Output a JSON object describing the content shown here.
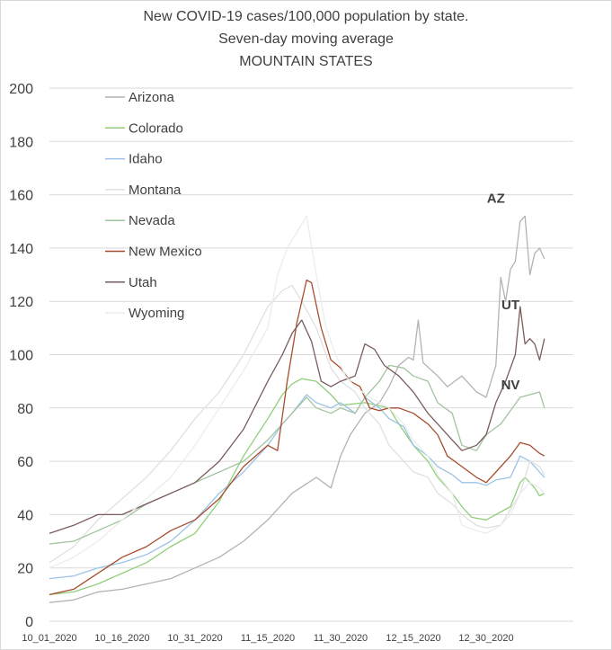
{
  "chart_data": {
    "type": "line",
    "title_lines": [
      "New COVID-19 cases/100,000 population by state.",
      "Seven-day moving average",
      "MOUNTAIN STATES"
    ],
    "ylim": [
      0,
      200
    ],
    "yticks": [
      0,
      20,
      40,
      60,
      80,
      100,
      120,
      140,
      160,
      180,
      200
    ],
    "x_tick_labels": [
      {
        "day": 0,
        "label": "10_01_2020"
      },
      {
        "day": 15,
        "label": "10_16_2020"
      },
      {
        "day": 30,
        "label": "10_31_2020"
      },
      {
        "day": 45,
        "label": "11_15_2020"
      },
      {
        "day": 60,
        "label": "11_30_2020"
      },
      {
        "day": 75,
        "label": "12_15_2020"
      },
      {
        "day": 90,
        "label": "12_30_2020"
      }
    ],
    "grid": "horizontal",
    "legend_position": "top-left",
    "annotations": [
      {
        "text": "AZ",
        "day": 92,
        "value": 157
      },
      {
        "text": "UT",
        "day": 95,
        "value": 117
      },
      {
        "text": "NV",
        "day": 95,
        "value": 87
      }
    ],
    "series": [
      {
        "name": "Arizona",
        "color": "#b3b3b3",
        "points": [
          [
            0,
            7
          ],
          [
            5,
            8
          ],
          [
            10,
            11
          ],
          [
            15,
            12
          ],
          [
            20,
            14
          ],
          [
            25,
            16
          ],
          [
            30,
            20
          ],
          [
            35,
            24
          ],
          [
            40,
            30
          ],
          [
            45,
            38
          ],
          [
            50,
            48
          ],
          [
            55,
            54
          ],
          [
            58,
            50
          ],
          [
            60,
            62
          ],
          [
            62,
            70
          ],
          [
            65,
            78
          ],
          [
            68,
            82
          ],
          [
            70,
            88
          ],
          [
            72,
            96
          ],
          [
            74,
            99
          ],
          [
            75,
            98
          ],
          [
            76,
            113
          ],
          [
            77,
            97
          ],
          [
            80,
            92
          ],
          [
            82,
            88
          ],
          [
            85,
            92
          ],
          [
            88,
            86
          ],
          [
            90,
            84
          ],
          [
            91,
            90
          ],
          [
            92,
            96
          ],
          [
            93,
            129
          ],
          [
            94,
            120
          ],
          [
            95,
            132
          ],
          [
            96,
            135
          ],
          [
            97,
            150
          ],
          [
            98,
            152
          ],
          [
            99,
            130
          ],
          [
            100,
            138
          ],
          [
            101,
            140
          ],
          [
            102,
            136
          ]
        ]
      },
      {
        "name": "Colorado",
        "color": "#8fcf7a",
        "points": [
          [
            0,
            10
          ],
          [
            5,
            11
          ],
          [
            10,
            14
          ],
          [
            15,
            18
          ],
          [
            20,
            22
          ],
          [
            25,
            28
          ],
          [
            30,
            33
          ],
          [
            35,
            45
          ],
          [
            40,
            62
          ],
          [
            45,
            76
          ],
          [
            48,
            85
          ],
          [
            50,
            89
          ],
          [
            52,
            91
          ],
          [
            55,
            90
          ],
          [
            58,
            85
          ],
          [
            60,
            81
          ],
          [
            65,
            82
          ],
          [
            70,
            80
          ],
          [
            72,
            74
          ],
          [
            75,
            66
          ],
          [
            78,
            60
          ],
          [
            80,
            54
          ],
          [
            83,
            48
          ],
          [
            85,
            43
          ],
          [
            87,
            39
          ],
          [
            90,
            38
          ],
          [
            92,
            40
          ],
          [
            95,
            43
          ],
          [
            97,
            52
          ],
          [
            98,
            54
          ],
          [
            100,
            50
          ],
          [
            101,
            47
          ],
          [
            102,
            48
          ]
        ]
      },
      {
        "name": "Idaho",
        "color": "#9cc3e6",
        "points": [
          [
            0,
            16
          ],
          [
            5,
            17
          ],
          [
            10,
            20
          ],
          [
            15,
            22
          ],
          [
            20,
            25
          ],
          [
            25,
            30
          ],
          [
            30,
            38
          ],
          [
            35,
            48
          ],
          [
            40,
            56
          ],
          [
            45,
            66
          ],
          [
            48,
            74
          ],
          [
            50,
            78
          ],
          [
            53,
            85
          ],
          [
            55,
            82
          ],
          [
            58,
            80
          ],
          [
            60,
            82
          ],
          [
            63,
            78
          ],
          [
            65,
            84
          ],
          [
            68,
            80
          ],
          [
            70,
            76
          ],
          [
            73,
            73
          ],
          [
            75,
            66
          ],
          [
            78,
            62
          ],
          [
            80,
            58
          ],
          [
            83,
            55
          ],
          [
            85,
            52
          ],
          [
            88,
            52
          ],
          [
            90,
            51
          ],
          [
            92,
            53
          ],
          [
            95,
            54
          ],
          [
            97,
            62
          ],
          [
            99,
            60
          ],
          [
            101,
            56
          ],
          [
            102,
            54
          ]
        ]
      },
      {
        "name": "Montana",
        "color": "#e0e0e0",
        "points": [
          [
            0,
            22
          ],
          [
            5,
            28
          ],
          [
            10,
            38
          ],
          [
            15,
            46
          ],
          [
            20,
            54
          ],
          [
            25,
            64
          ],
          [
            30,
            76
          ],
          [
            35,
            86
          ],
          [
            40,
            100
          ],
          [
            45,
            118
          ],
          [
            48,
            124
          ],
          [
            50,
            126
          ],
          [
            52,
            120
          ],
          [
            55,
            110
          ],
          [
            58,
            95
          ],
          [
            60,
            90
          ],
          [
            63,
            86
          ],
          [
            65,
            80
          ],
          [
            68,
            74
          ],
          [
            70,
            66
          ],
          [
            73,
            60
          ],
          [
            75,
            56
          ],
          [
            78,
            54
          ],
          [
            80,
            48
          ],
          [
            83,
            44
          ],
          [
            85,
            40
          ],
          [
            88,
            36
          ],
          [
            90,
            35
          ],
          [
            93,
            36
          ],
          [
            95,
            42
          ],
          [
            97,
            48
          ],
          [
            99,
            60
          ],
          [
            101,
            58
          ],
          [
            102,
            55
          ]
        ]
      },
      {
        "name": "Nevada",
        "color": "#a3c3a0",
        "points": [
          [
            0,
            29
          ],
          [
            5,
            30
          ],
          [
            10,
            34
          ],
          [
            15,
            38
          ],
          [
            20,
            44
          ],
          [
            25,
            48
          ],
          [
            30,
            52
          ],
          [
            35,
            56
          ],
          [
            40,
            60
          ],
          [
            45,
            68
          ],
          [
            48,
            74
          ],
          [
            50,
            78
          ],
          [
            53,
            84
          ],
          [
            55,
            80
          ],
          [
            58,
            78
          ],
          [
            60,
            80
          ],
          [
            63,
            78
          ],
          [
            65,
            84
          ],
          [
            68,
            90
          ],
          [
            70,
            96
          ],
          [
            73,
            95
          ],
          [
            75,
            92
          ],
          [
            78,
            90
          ],
          [
            80,
            82
          ],
          [
            83,
            78
          ],
          [
            85,
            66
          ],
          [
            88,
            64
          ],
          [
            90,
            70
          ],
          [
            93,
            74
          ],
          [
            95,
            79
          ],
          [
            97,
            84
          ],
          [
            99,
            85
          ],
          [
            101,
            86
          ],
          [
            102,
            80
          ]
        ]
      },
      {
        "name": "New Mexico",
        "color": "#a64d2e",
        "points": [
          [
            0,
            10
          ],
          [
            5,
            12
          ],
          [
            10,
            18
          ],
          [
            15,
            24
          ],
          [
            20,
            28
          ],
          [
            25,
            34
          ],
          [
            30,
            38
          ],
          [
            35,
            46
          ],
          [
            40,
            58
          ],
          [
            45,
            66
          ],
          [
            47,
            64
          ],
          [
            49,
            90
          ],
          [
            51,
            112
          ],
          [
            53,
            128
          ],
          [
            54,
            127
          ],
          [
            56,
            110
          ],
          [
            58,
            98
          ],
          [
            60,
            95
          ],
          [
            62,
            90
          ],
          [
            64,
            88
          ],
          [
            66,
            80
          ],
          [
            68,
            79
          ],
          [
            70,
            80
          ],
          [
            72,
            80
          ],
          [
            75,
            78
          ],
          [
            78,
            74
          ],
          [
            80,
            70
          ],
          [
            82,
            62
          ],
          [
            85,
            58
          ],
          [
            88,
            54
          ],
          [
            90,
            52
          ],
          [
            92,
            56
          ],
          [
            95,
            62
          ],
          [
            97,
            67
          ],
          [
            99,
            66
          ],
          [
            101,
            63
          ],
          [
            102,
            62
          ]
        ]
      },
      {
        "name": "Utah",
        "color": "#7a5c5c",
        "points": [
          [
            0,
            33
          ],
          [
            5,
            36
          ],
          [
            10,
            40
          ],
          [
            15,
            40
          ],
          [
            20,
            44
          ],
          [
            25,
            48
          ],
          [
            30,
            52
          ],
          [
            35,
            60
          ],
          [
            40,
            72
          ],
          [
            45,
            90
          ],
          [
            48,
            100
          ],
          [
            50,
            108
          ],
          [
            52,
            113
          ],
          [
            54,
            105
          ],
          [
            56,
            90
          ],
          [
            58,
            88
          ],
          [
            60,
            90
          ],
          [
            63,
            92
          ],
          [
            65,
            104
          ],
          [
            67,
            102
          ],
          [
            69,
            96
          ],
          [
            72,
            92
          ],
          [
            75,
            86
          ],
          [
            78,
            78
          ],
          [
            80,
            74
          ],
          [
            83,
            68
          ],
          [
            85,
            64
          ],
          [
            88,
            66
          ],
          [
            90,
            70
          ],
          [
            92,
            82
          ],
          [
            94,
            90
          ],
          [
            96,
            100
          ],
          [
            97,
            118
          ],
          [
            98,
            104
          ],
          [
            99,
            106
          ],
          [
            100,
            104
          ],
          [
            101,
            98
          ],
          [
            102,
            106
          ]
        ]
      },
      {
        "name": "Wyoming",
        "color": "#ececec",
        "points": [
          [
            0,
            20
          ],
          [
            5,
            24
          ],
          [
            10,
            30
          ],
          [
            15,
            38
          ],
          [
            20,
            46
          ],
          [
            25,
            54
          ],
          [
            30,
            66
          ],
          [
            35,
            80
          ],
          [
            40,
            94
          ],
          [
            45,
            110
          ],
          [
            47,
            130
          ],
          [
            49,
            140
          ],
          [
            51,
            146
          ],
          [
            53,
            152
          ],
          [
            55,
            130
          ],
          [
            57,
            110
          ],
          [
            59,
            100
          ],
          [
            61,
            92
          ],
          [
            63,
            88
          ],
          [
            66,
            84
          ],
          [
            70,
            80
          ],
          [
            73,
            74
          ],
          [
            75,
            68
          ],
          [
            78,
            62
          ],
          [
            80,
            55
          ],
          [
            83,
            48
          ],
          [
            85,
            36
          ],
          [
            88,
            34
          ],
          [
            90,
            33
          ],
          [
            93,
            36
          ],
          [
            95,
            40
          ],
          [
            97,
            48
          ],
          [
            99,
            52
          ],
          [
            101,
            50
          ],
          [
            102,
            48
          ]
        ]
      }
    ]
  }
}
